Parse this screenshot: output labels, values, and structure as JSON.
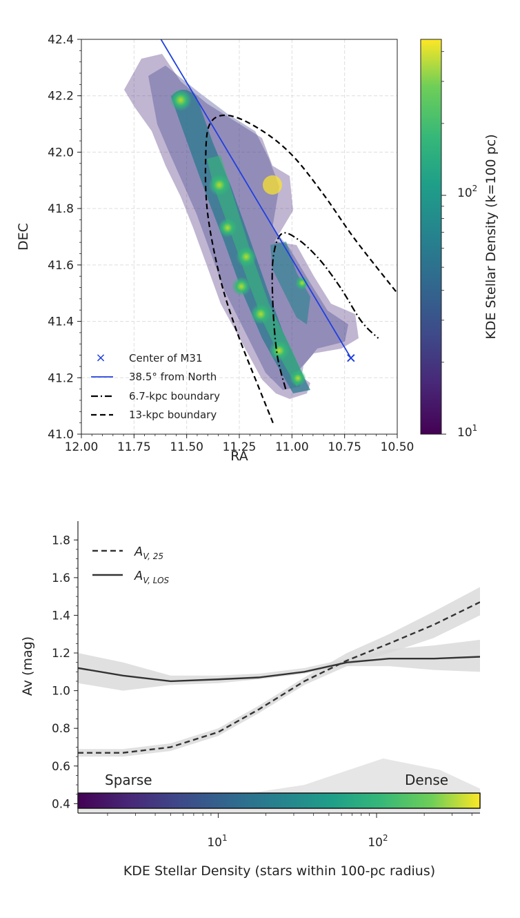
{
  "colors": {
    "line": "#333333",
    "band": "#d8d8d8",
    "blue": "#1f3fe0",
    "grid": "#dddddd"
  },
  "chart_data": [
    {
      "type": "scatter",
      "xlabel": "RA",
      "ylabel": "DEC",
      "xlim": [
        12.0,
        10.5
      ],
      "ylim": [
        41.0,
        42.4
      ],
      "x_ticks": [
        "12.00",
        "11.75",
        "11.50",
        "11.25",
        "11.00",
        "10.75",
        "10.50"
      ],
      "y_ticks": [
        "41.0",
        "41.2",
        "41.4",
        "41.6",
        "41.8",
        "42.0",
        "42.2",
        "42.4"
      ],
      "grid": true,
      "legend_position": "lower-left",
      "legend": [
        "Center of M31",
        "38.5° from North",
        "6.7-kpc boundary",
        "13-kpc boundary"
      ],
      "center": {
        "ra": 10.72,
        "dec": 41.27
      },
      "major_axis_line": [
        [
          11.63,
          42.41
        ],
        [
          10.72,
          41.27
        ]
      ],
      "boundary_6_7kpc": [
        [
          11.03,
          41.16
        ],
        [
          11.07,
          41.28
        ],
        [
          11.09,
          41.45
        ],
        [
          11.09,
          41.62
        ],
        [
          11.05,
          41.71
        ],
        [
          10.97,
          41.69
        ],
        [
          10.87,
          41.62
        ],
        [
          10.77,
          41.52
        ],
        [
          10.67,
          41.4
        ],
        [
          10.59,
          41.34
        ]
      ],
      "boundary_13kpc": [
        [
          11.09,
          41.04
        ],
        [
          11.16,
          41.17
        ],
        [
          11.26,
          41.36
        ],
        [
          11.34,
          41.55
        ],
        [
          11.4,
          41.78
        ],
        [
          11.41,
          41.97
        ],
        [
          11.39,
          42.1
        ],
        [
          11.3,
          42.13
        ],
        [
          11.15,
          42.08
        ],
        [
          11.0,
          41.99
        ],
        [
          10.85,
          41.85
        ],
        [
          10.7,
          41.69
        ],
        [
          10.5,
          41.5
        ]
      ],
      "colorbar": {
        "label": "KDE Stellar Density (k=100 pc)",
        "scale": "log",
        "range": [
          10,
          450
        ],
        "ticks": [
          "10",
          "10"
        ],
        "tick_exponents": [
          "1",
          "2"
        ]
      }
    },
    {
      "type": "line",
      "xlabel": "KDE Stellar Density (stars within 100-pc radius)",
      "ylabel": "Av (mag)",
      "x_scale": "log",
      "xlim": [
        1.3,
        450
      ],
      "ylim": [
        0.35,
        1.9
      ],
      "x_ticks": [
        "10",
        "10"
      ],
      "x_tick_exponents": [
        "1",
        "2"
      ],
      "y_ticks": [
        "0.4",
        "0.6",
        "0.8",
        "1.0",
        "1.2",
        "1.4",
        "1.6",
        "1.8"
      ],
      "legend_position": "top-left",
      "x": [
        1.3,
        2.5,
        5,
        10,
        18,
        35,
        65,
        120,
        230,
        450
      ],
      "series": [
        {
          "name": "A",
          "sub": "V, 25",
          "style": "dashed",
          "values": [
            0.67,
            0.67,
            0.7,
            0.78,
            0.9,
            1.05,
            1.16,
            1.25,
            1.35,
            1.47
          ],
          "band": [
            [
              0.65,
              0.69
            ],
            [
              0.65,
              0.69
            ],
            [
              0.68,
              0.72
            ],
            [
              0.76,
              0.8
            ],
            [
              0.88,
              0.92
            ],
            [
              1.03,
              1.07
            ],
            [
              1.13,
              1.2
            ],
            [
              1.2,
              1.3
            ],
            [
              1.28,
              1.42
            ],
            [
              1.4,
              1.55
            ]
          ]
        },
        {
          "name": "A",
          "sub": "V, LOS",
          "style": "solid",
          "values": [
            1.12,
            1.08,
            1.05,
            1.06,
            1.07,
            1.1,
            1.15,
            1.17,
            1.17,
            1.18
          ],
          "band": [
            [
              1.04,
              1.2
            ],
            [
              1.0,
              1.15
            ],
            [
              1.03,
              1.08
            ],
            [
              1.04,
              1.08
            ],
            [
              1.06,
              1.09
            ],
            [
              1.09,
              1.12
            ],
            [
              1.13,
              1.17
            ],
            [
              1.13,
              1.22
            ],
            [
              1.11,
              1.24
            ],
            [
              1.1,
              1.27
            ]
          ]
        }
      ],
      "histogram_shade": {
        "x": [
          1.3,
          10,
          35,
          110,
          250,
          450
        ],
        "values": [
          0.41,
          0.43,
          0.5,
          0.64,
          0.58,
          0.48
        ]
      },
      "annotations": [
        "Sparse",
        "Dense"
      ],
      "colorbar_range": [
        1.3,
        450
      ]
    }
  ]
}
